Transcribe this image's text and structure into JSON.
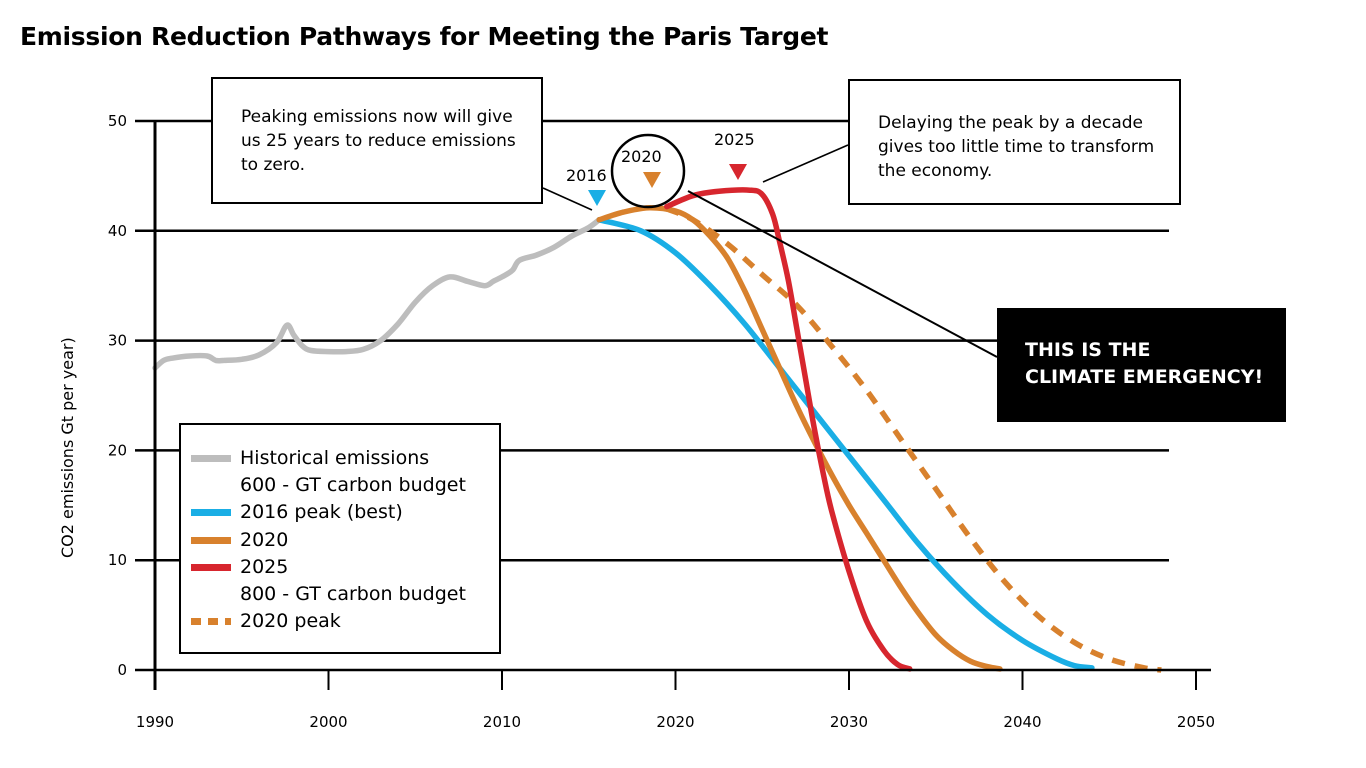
{
  "title": "Emission Reduction Pathways for Meeting the Paris Target",
  "callouts": {
    "left": "Peaking emissions now will give us 25 years to reduce emissions to zero.",
    "right": "Delaying the peak by a decade gives too little time to transform the economy.",
    "emergency": "THIS IS THE CLIMATE EMERGENCY!"
  },
  "annotations": {
    "peak_2016": "2016",
    "peak_2020": "2020",
    "peak_2025": "2025"
  },
  "legend": [
    {
      "label": "Historical emissions",
      "color": "#bdbdbd",
      "style": "solid"
    },
    {
      "label": "600 - GT carbon budget",
      "color": null,
      "style": "none"
    },
    {
      "label": "2016 peak (best)",
      "color": "#1aaee5",
      "style": "solid"
    },
    {
      "label": "2020",
      "color": "#d8812d",
      "style": "solid"
    },
    {
      "label": "2025",
      "color": "#d7262e",
      "style": "solid"
    },
    {
      "label": "800 - GT carbon budget",
      "color": null,
      "style": "none"
    },
    {
      "label": "2020 peak",
      "color": "#d8812d",
      "style": "dashed"
    }
  ],
  "chart_data": {
    "type": "line",
    "title": "Emission Reduction Pathways for Meeting the Paris Target",
    "xlabel": "",
    "ylabel": "CO2 emissions Gt per year)",
    "xlim": [
      1990,
      2050
    ],
    "ylim": [
      0,
      50
    ],
    "xticks": [
      1990,
      2000,
      2010,
      2020,
      2030,
      2040,
      2050
    ],
    "yticks": [
      0,
      10,
      20,
      30,
      40,
      50
    ],
    "grid": "horizontal",
    "legend_position": "bottom-left",
    "series": [
      {
        "name": "Historical emissions",
        "color": "#bdbdbd",
        "dash": false,
        "points": [
          [
            1990,
            27.5
          ],
          [
            1990.5,
            28.2
          ],
          [
            1991,
            28.4
          ],
          [
            1992,
            28.6
          ],
          [
            1993,
            28.6
          ],
          [
            1993.5,
            28.2
          ],
          [
            1994,
            28.2
          ],
          [
            1995,
            28.3
          ],
          [
            1996,
            28.7
          ],
          [
            1997,
            29.8
          ],
          [
            1997.6,
            31.4
          ],
          [
            1998,
            30.5
          ],
          [
            1998.5,
            29.5
          ],
          [
            1999,
            29.1
          ],
          [
            2000,
            29.0
          ],
          [
            2001,
            29.0
          ],
          [
            2002,
            29.2
          ],
          [
            2003,
            30.0
          ],
          [
            2004,
            31.5
          ],
          [
            2005,
            33.5
          ],
          [
            2006,
            35.0
          ],
          [
            2007,
            35.8
          ],
          [
            2008,
            35.4
          ],
          [
            2009,
            35.0
          ],
          [
            2009.5,
            35.4
          ],
          [
            2010,
            35.8
          ],
          [
            2010.6,
            36.4
          ],
          [
            2011,
            37.3
          ],
          [
            2012,
            37.8
          ],
          [
            2013,
            38.5
          ],
          [
            2014,
            39.5
          ],
          [
            2015,
            40.3
          ],
          [
            2015.6,
            41.0
          ]
        ]
      },
      {
        "name": "2016 peak (best)",
        "color": "#1aaee5",
        "dash": false,
        "points": [
          [
            2015.6,
            41.0
          ],
          [
            2018,
            40.0
          ],
          [
            2020,
            38.0
          ],
          [
            2022,
            35.0
          ],
          [
            2024,
            31.5
          ],
          [
            2026,
            27.5
          ],
          [
            2028,
            23.5
          ],
          [
            2030,
            19.5
          ],
          [
            2032,
            15.5
          ],
          [
            2034,
            11.5
          ],
          [
            2036,
            8.0
          ],
          [
            2038,
            5.0
          ],
          [
            2040,
            2.7
          ],
          [
            2042,
            1.0
          ],
          [
            2043,
            0.4
          ],
          [
            2044,
            0.2
          ]
        ]
      },
      {
        "name": "2020",
        "color": "#d8812d",
        "dash": false,
        "points": [
          [
            2015.6,
            41.0
          ],
          [
            2017,
            41.7
          ],
          [
            2018.5,
            42.1
          ],
          [
            2020,
            41.8
          ],
          [
            2021,
            41.0
          ],
          [
            2022,
            39.5
          ],
          [
            2023,
            37.5
          ],
          [
            2024,
            34.5
          ],
          [
            2025,
            31.0
          ],
          [
            2026,
            27.5
          ],
          [
            2027,
            24.0
          ],
          [
            2028,
            20.8
          ],
          [
            2029,
            17.8
          ],
          [
            2030,
            15.0
          ],
          [
            2031,
            12.5
          ],
          [
            2032,
            10.0
          ],
          [
            2033,
            7.5
          ],
          [
            2034,
            5.2
          ],
          [
            2035,
            3.2
          ],
          [
            2036,
            1.8
          ],
          [
            2037,
            0.8
          ],
          [
            2038,
            0.3
          ],
          [
            2038.7,
            0.1
          ]
        ]
      },
      {
        "name": "2025",
        "color": "#d7262e",
        "dash": false,
        "points": [
          [
            2019.5,
            42.2
          ],
          [
            2021,
            43.2
          ],
          [
            2022.5,
            43.6
          ],
          [
            2024.3,
            43.7
          ],
          [
            2025,
            43.3
          ],
          [
            2025.6,
            41.5
          ],
          [
            2026,
            39.0
          ],
          [
            2026.5,
            35.5
          ],
          [
            2027,
            31.0
          ],
          [
            2027.5,
            26.5
          ],
          [
            2028,
            22.0
          ],
          [
            2028.5,
            18.0
          ],
          [
            2029,
            14.5
          ],
          [
            2030,
            9.0
          ],
          [
            2031,
            4.5
          ],
          [
            2032,
            1.8
          ],
          [
            2032.8,
            0.5
          ],
          [
            2033.5,
            0.1
          ]
        ]
      },
      {
        "name": "2020 peak",
        "color": "#d8812d",
        "dash": true,
        "points": [
          [
            2019.5,
            42.0
          ],
          [
            2021,
            41.0
          ],
          [
            2023,
            38.8
          ],
          [
            2025,
            36.0
          ],
          [
            2027,
            33.2
          ],
          [
            2029,
            29.5
          ],
          [
            2031,
            25.5
          ],
          [
            2033,
            21.0
          ],
          [
            2035,
            16.5
          ],
          [
            2037,
            12.0
          ],
          [
            2039,
            8.0
          ],
          [
            2041,
            4.8
          ],
          [
            2043,
            2.5
          ],
          [
            2045,
            1.0
          ],
          [
            2047,
            0.2
          ],
          [
            2048,
            0.0
          ]
        ]
      }
    ]
  }
}
